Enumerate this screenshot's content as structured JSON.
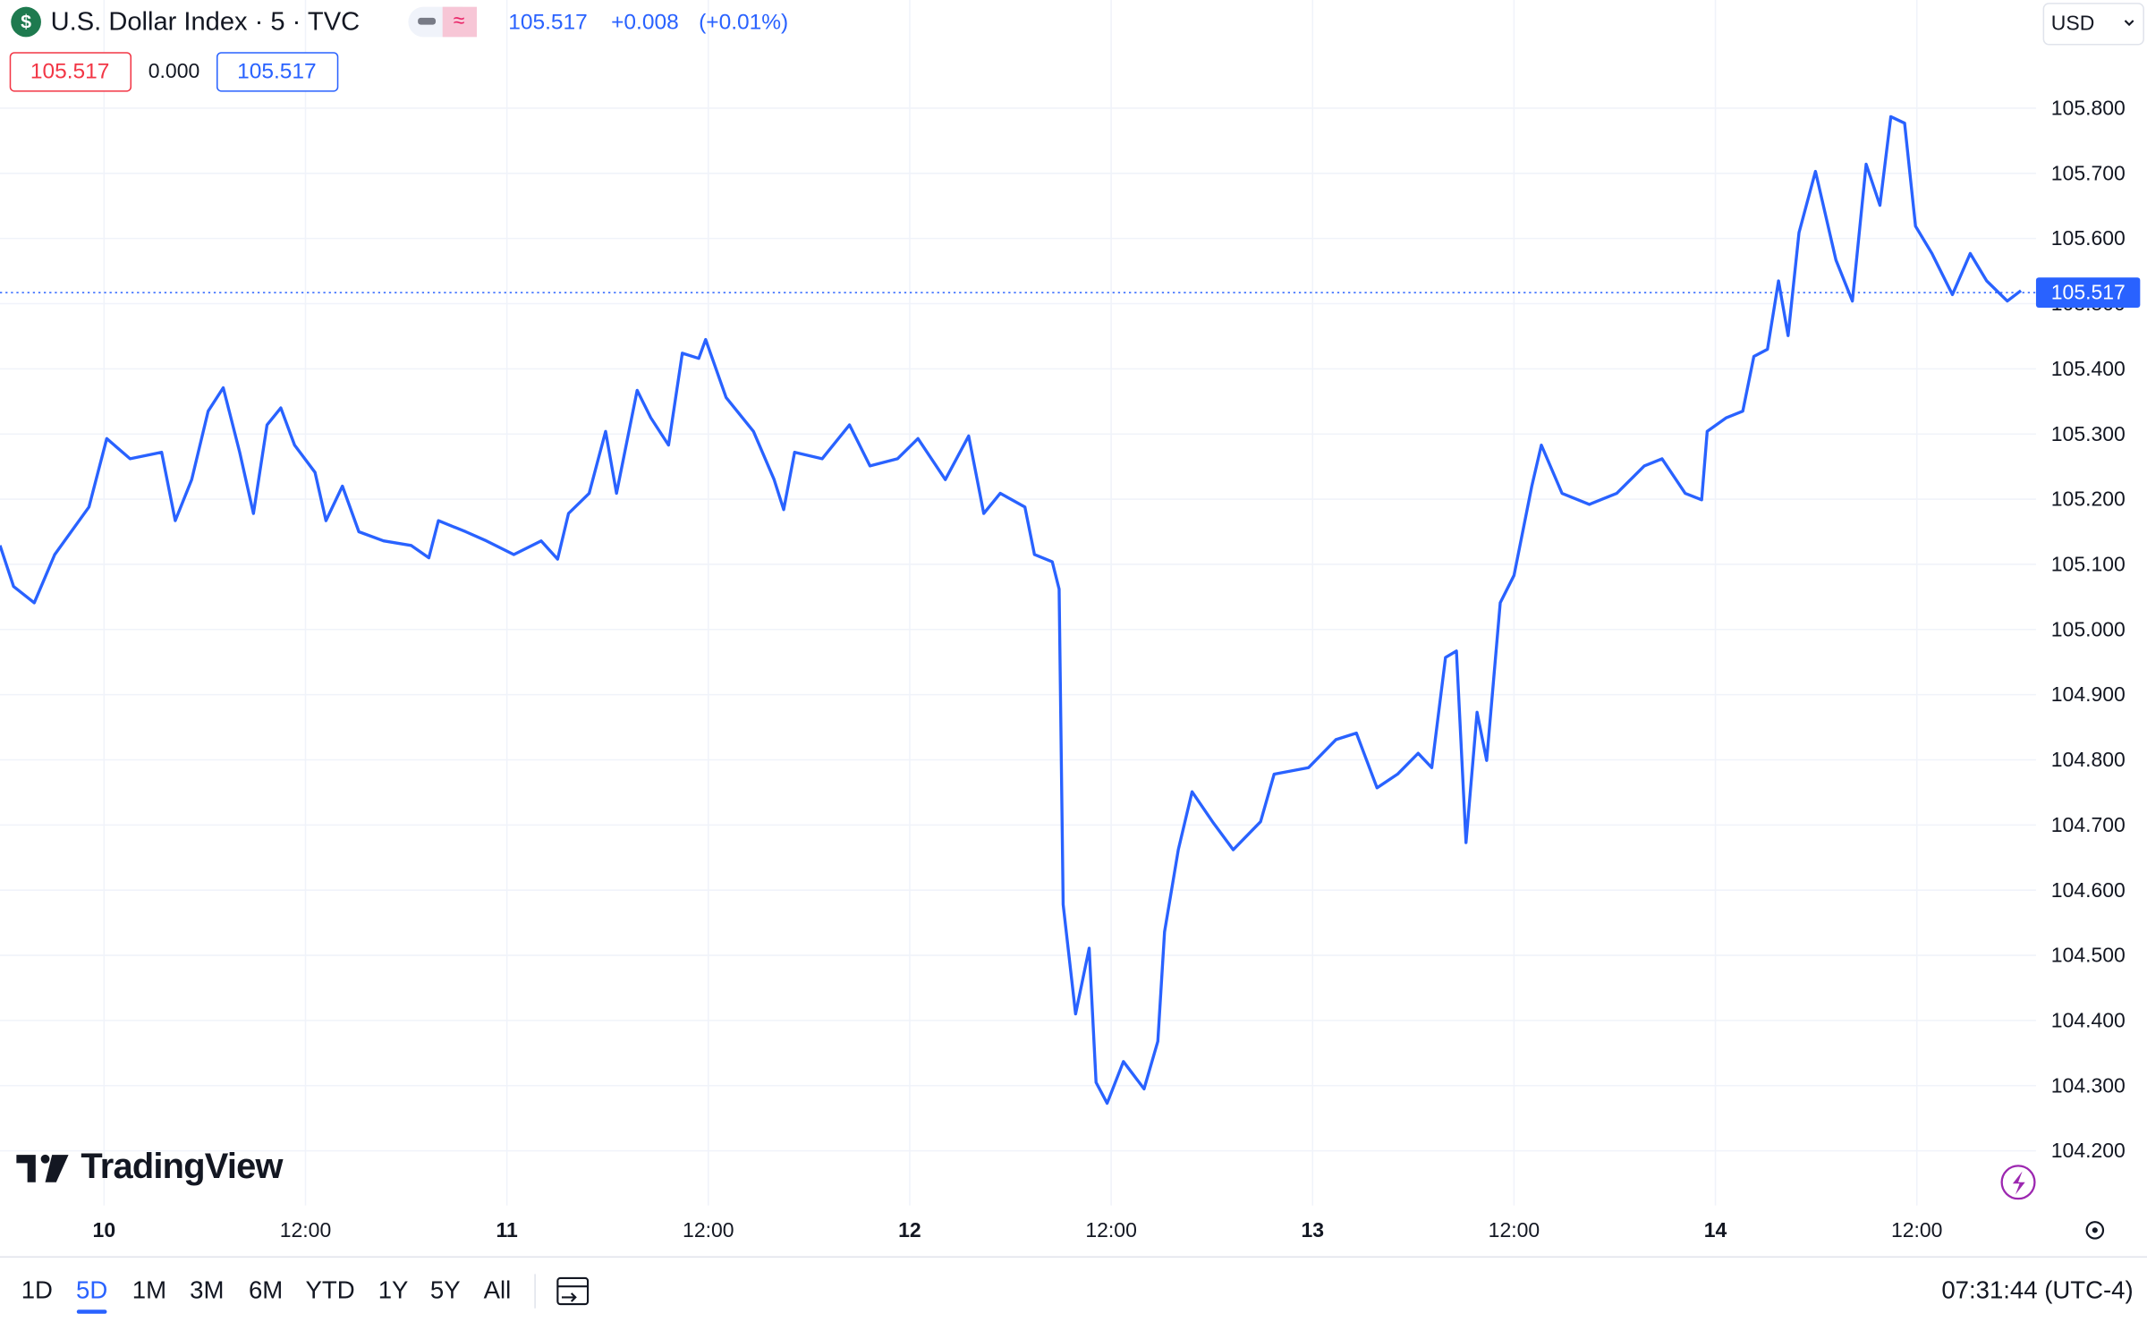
{
  "header": {
    "title": "U.S. Dollar Index · 5 · TVC",
    "last": 105.517,
    "change": "+0.008",
    "change_pct": "(+0.01%)",
    "bid": 105.517,
    "spread": "0.000",
    "ask": 105.517,
    "currency": "USD"
  },
  "logo": "TradingView",
  "toolbar": {
    "ranges": [
      "1D",
      "5D",
      "1M",
      "3M",
      "6M",
      "YTD",
      "1Y",
      "5Y",
      "All"
    ],
    "active_range": 1,
    "clock": "07:31:44 (UTC-4)"
  },
  "chart_data": {
    "type": "line",
    "x": [
      -6.2,
      -5.39,
      -4.16,
      -2.94,
      -0.9,
      0.16,
      1.55,
      3.43,
      4.24,
      5.22,
      6.2,
      7.1,
      8.08,
      8.9,
      9.71,
      10.53,
      11.35,
      12.57,
      13.22,
      14.2,
      15.18,
      16.65,
      18.29,
      19.35,
      19.92,
      21.55,
      22.78,
      24.41,
      26.04,
      27.02,
      27.67,
      28.9,
      29.88,
      30.53,
      31.76,
      32.57,
      33.63,
      34.45,
      35.43,
      35.84,
      37.06,
      38.69,
      39.92,
      40.49,
      41.14,
      42.78,
      44.41,
      45.63,
      47.27,
      48.49,
      50.12,
      51.51,
      52.41,
      53.39,
      54.86,
      55.43,
      56.49,
      56.9,
      57.14,
      57.88,
      58.69,
      59.1,
      59.76,
      60.73,
      61.96,
      62.78,
      63.18,
      64.0,
      64.82,
      66.04,
      67.27,
      68.9,
      69.71,
      71.76,
      73.39,
      74.61,
      75.84,
      77.06,
      78.29,
      79.1,
      79.92,
      80.57,
      81.14,
      81.8,
      82.37,
      83.18,
      84.0,
      85.06,
      85.63,
      86.86,
      88.49,
      90.12,
      91.76,
      92.82,
      94.2,
      95.18,
      95.51,
      96.65,
      97.63,
      98.29,
      99.1,
      99.76,
      100.33,
      100.98,
      101.96,
      103.18,
      104.16,
      104.98,
      105.8,
      106.45,
      107.27,
      107.92,
      108.9,
      110.12,
      111.18,
      112.16,
      113.39,
      114.2
    ],
    "series": [
      {
        "name": "U.S. Dollar Index",
        "color": "#2962ff",
        "values": [
          105.129,
          105.066,
          105.041,
          105.115,
          105.188,
          105.293,
          105.262,
          105.272,
          105.167,
          105.23,
          105.335,
          105.371,
          105.272,
          105.178,
          105.314,
          105.34,
          105.283,
          105.241,
          105.167,
          105.22,
          105.15,
          105.136,
          105.129,
          105.11,
          105.167,
          105.15,
          105.136,
          105.115,
          105.136,
          105.108,
          105.178,
          105.209,
          105.304,
          105.209,
          105.367,
          105.325,
          105.283,
          105.424,
          105.416,
          105.445,
          105.356,
          105.304,
          105.23,
          105.184,
          105.272,
          105.262,
          105.314,
          105.251,
          105.262,
          105.293,
          105.23,
          105.297,
          105.178,
          105.209,
          105.188,
          105.115,
          105.104,
          105.062,
          104.578,
          104.41,
          104.511,
          104.305,
          104.273,
          104.337,
          104.295,
          104.368,
          104.536,
          104.662,
          104.751,
          104.705,
          104.662,
          104.705,
          104.778,
          104.788,
          104.831,
          104.841,
          104.757,
          104.778,
          104.81,
          104.788,
          104.957,
          104.967,
          104.673,
          104.873,
          104.799,
          105.041,
          105.083,
          105.22,
          105.283,
          105.209,
          105.192,
          105.209,
          105.251,
          105.262,
          105.209,
          105.199,
          105.304,
          105.325,
          105.335,
          105.419,
          105.43,
          105.535,
          105.451,
          105.609,
          105.703,
          105.567,
          105.504,
          105.714,
          105.651,
          105.787,
          105.777,
          105.619,
          105.577,
          105.514,
          105.577,
          105.535,
          105.504,
          105.52
        ]
      }
    ],
    "xlim": [
      -6.2,
      115.1
    ],
    "xticks": [
      {
        "value": 0,
        "label": "10"
      },
      {
        "value": 12,
        "label": "12:00"
      },
      {
        "value": 24,
        "label": "11"
      },
      {
        "value": 36,
        "label": "12:00"
      },
      {
        "value": 48,
        "label": "12"
      },
      {
        "value": 60,
        "label": "12:00"
      },
      {
        "value": 72,
        "label": "13"
      },
      {
        "value": 84,
        "label": "12:00"
      },
      {
        "value": 96,
        "label": "14"
      },
      {
        "value": 108,
        "label": "12:00"
      }
    ],
    "ylim": [
      104.116,
      105.966
    ],
    "yticks": [
      {
        "value": 104.2,
        "label": "104.200"
      },
      {
        "value": 104.3,
        "label": "104.300"
      },
      {
        "value": 104.4,
        "label": "104.400"
      },
      {
        "value": 104.5,
        "label": "104.500"
      },
      {
        "value": 104.6,
        "label": "104.600"
      },
      {
        "value": 104.7,
        "label": "104.700"
      },
      {
        "value": 104.8,
        "label": "104.800"
      },
      {
        "value": 104.9,
        "label": "104.900"
      },
      {
        "value": 105.0,
        "label": "105.000"
      },
      {
        "value": 105.1,
        "label": "105.100"
      },
      {
        "value": 105.2,
        "label": "105.200"
      },
      {
        "value": 105.3,
        "label": "105.300"
      },
      {
        "value": 105.4,
        "label": "105.400"
      },
      {
        "value": 105.5,
        "label": "105.500"
      },
      {
        "value": 105.6,
        "label": "105.600"
      },
      {
        "value": 105.7,
        "label": "105.700"
      },
      {
        "value": 105.8,
        "label": "105.800"
      }
    ],
    "last_price": {
      "value": 105.517,
      "label": "105.517"
    },
    "grid": true
  }
}
